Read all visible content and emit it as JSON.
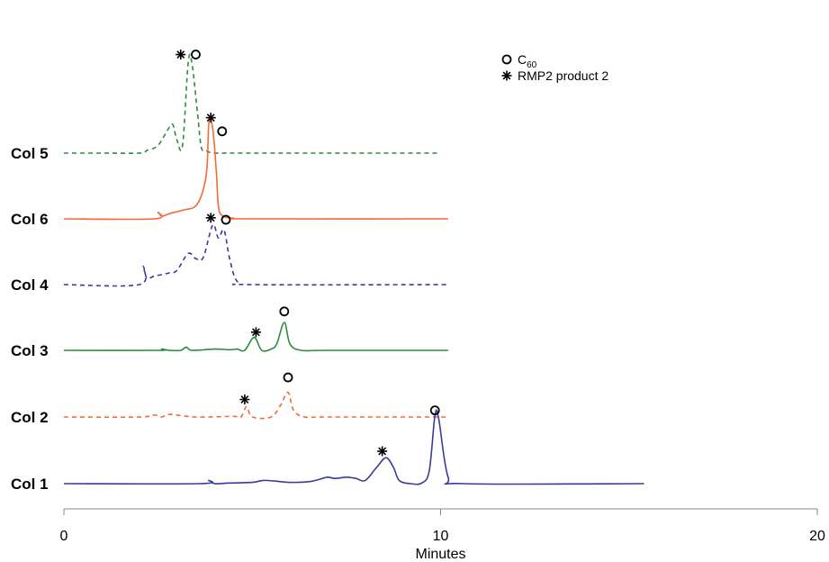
{
  "chart_data": {
    "type": "line",
    "xlabel": "Minutes",
    "xlim": [
      0,
      20
    ],
    "xticks": [
      "0",
      "10",
      "20"
    ],
    "grid": false,
    "legend_position": "top-right",
    "legend": [
      {
        "marker": "circle",
        "label": "C",
        "subscript": "60"
      },
      {
        "marker": "asterisk",
        "label": "RMP2 product 2"
      }
    ],
    "series": [
      {
        "name": "Col 5",
        "color": "#2e8b3e",
        "dash": true,
        "baseline": 0,
        "x": [
          0,
          1,
          2,
          2.2,
          2.5,
          2.8,
          2.9,
          3.0,
          3.15,
          3.3,
          3.4,
          3.55,
          3.65,
          3.8,
          3.9,
          4.0,
          4.3,
          5,
          10
        ],
        "y": [
          0,
          0,
          0,
          4,
          12,
          40,
          43,
          20,
          12,
          140,
          138,
          60,
          8,
          3,
          0.5,
          0,
          0,
          0,
          0
        ],
        "markers": [
          {
            "type": "asterisk",
            "x": 3.1,
            "y": 152
          },
          {
            "type": "circle",
            "x": 3.5,
            "y": 152
          }
        ]
      },
      {
        "name": "Col 6",
        "color": "#f26b38",
        "dash": false,
        "baseline": 0,
        "x": [
          0,
          2.4,
          2.5,
          2.6,
          2.8,
          3.2,
          3.5,
          3.7,
          3.8,
          3.85,
          3.95,
          4.05,
          4.1,
          4.2,
          4.5,
          5,
          10.2
        ],
        "y": [
          0,
          0,
          10,
          4,
          8,
          14,
          20,
          45,
          80,
          148,
          140,
          70,
          20,
          5,
          1,
          0,
          0
        ],
        "markers": [
          {
            "type": "asterisk",
            "x": 3.9,
            "y": 156
          },
          {
            "type": "circle",
            "x": 4.2,
            "y": 135
          }
        ]
      },
      {
        "name": "Col 4",
        "color": "#3a3a9a",
        "dash": true,
        "baseline": 0,
        "x": [
          0,
          2.0,
          2.1,
          2.2,
          2.4,
          2.8,
          3.0,
          3.3,
          3.5,
          3.7,
          3.95,
          4.1,
          4.25,
          4.4,
          4.6,
          5,
          10.2
        ],
        "y": [
          0,
          0,
          28,
          10,
          13,
          18,
          22,
          48,
          40,
          42,
          92,
          72,
          84,
          40,
          5,
          0,
          0
        ],
        "markers": [
          {
            "type": "asterisk",
            "x": 3.9,
            "y": 103
          },
          {
            "type": "circle",
            "x": 4.3,
            "y": 100
          }
        ]
      },
      {
        "name": "Col 3",
        "color": "#2e8b3e",
        "dash": false,
        "baseline": 0,
        "x": [
          0,
          2.5,
          2.6,
          2.8,
          3.1,
          3.25,
          3.4,
          4.0,
          4.4,
          4.6,
          4.8,
          5.05,
          5.25,
          5.5,
          5.65,
          5.85,
          6.0,
          6.3,
          7,
          10.2
        ],
        "y": [
          0,
          0,
          2,
          0,
          0,
          5,
          0,
          2,
          1,
          2,
          0,
          20,
          0,
          2,
          10,
          43,
          10,
          0,
          0,
          0
        ],
        "markers": [
          {
            "type": "asterisk",
            "x": 5.1,
            "y": 28
          },
          {
            "type": "circle",
            "x": 5.85,
            "y": 60
          }
        ]
      },
      {
        "name": "Col 2",
        "color": "#f26b38",
        "dash": true,
        "baseline": 0,
        "x": [
          0,
          2.0,
          2.4,
          2.6,
          2.8,
          3.5,
          4.5,
          4.7,
          4.85,
          5.0,
          5.5,
          5.75,
          5.95,
          6.1,
          6.4,
          7,
          10.2
        ],
        "y": [
          0,
          0,
          3,
          0,
          4,
          0,
          1,
          0,
          16,
          0,
          0,
          18,
          38,
          10,
          0,
          0,
          0
        ],
        "markers": [
          {
            "type": "asterisk",
            "x": 4.8,
            "y": 27
          },
          {
            "type": "circle",
            "x": 5.95,
            "y": 61
          }
        ]
      },
      {
        "name": "Col 1",
        "color": "#3a3a9a",
        "dash": false,
        "baseline": 0,
        "x": [
          0,
          3.6,
          3.85,
          4.0,
          4.4,
          5.0,
          5.3,
          5.6,
          6.0,
          6.5,
          6.8,
          7.0,
          7.2,
          7.5,
          7.75,
          8.0,
          8.3,
          8.55,
          8.75,
          8.9,
          9.2,
          9.5,
          9.7,
          9.85,
          9.95,
          10.2,
          10.6,
          15.4
        ],
        "y": [
          0,
          0,
          5,
          0,
          1,
          2,
          5,
          4,
          2,
          3,
          7,
          10,
          8,
          10,
          8,
          5,
          25,
          40,
          25,
          5,
          0,
          1,
          20,
          105,
          100,
          10,
          0,
          0
        ],
        "markers": [
          {
            "type": "asterisk",
            "x": 8.45,
            "y": 50
          },
          {
            "type": "circle",
            "x": 9.85,
            "y": 113
          }
        ]
      }
    ]
  }
}
